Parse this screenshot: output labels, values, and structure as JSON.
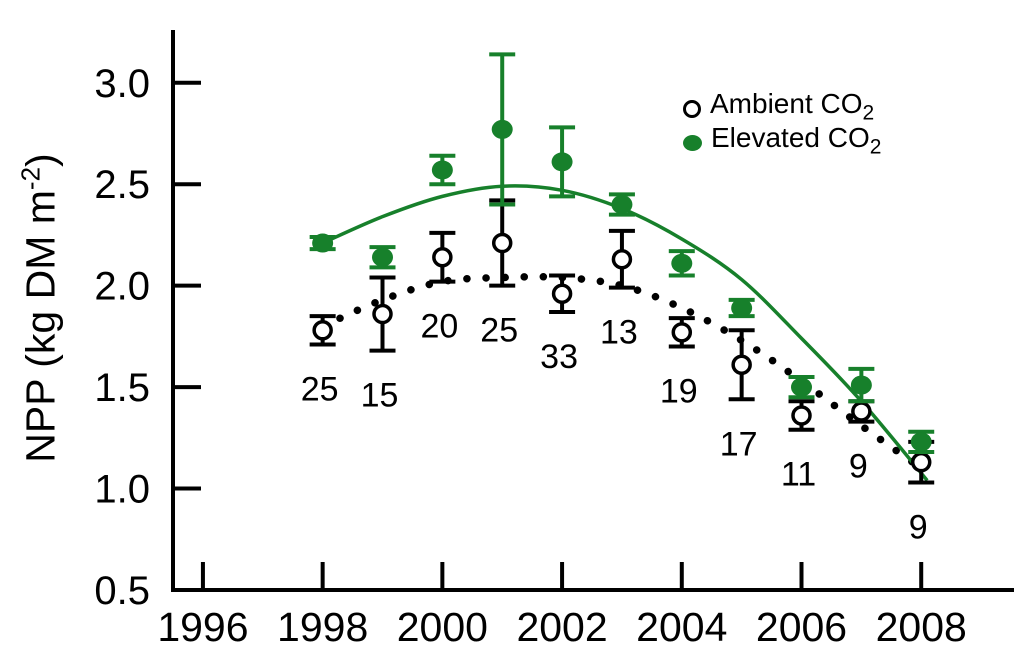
{
  "chart_data": {
    "type": "scatter",
    "title": "",
    "grid": false,
    "xlim": [
      1995.5,
      2009.55
    ],
    "ylim": [
      0.5,
      3.26
    ],
    "x_axis": {
      "ticks": [
        1996,
        1998,
        2000,
        2002,
        2004,
        2006,
        2008
      ]
    },
    "y_axis": {
      "ticks": [
        0.5,
        1.0,
        1.5,
        2.0,
        2.5,
        3.0
      ],
      "label_prefix": "NPP (kg DM m",
      "label_sup": "-2",
      "label_suffix": ")"
    },
    "colors": {
      "ambient": "#000000",
      "elevated": "#17802b"
    },
    "legend": {
      "position": "upper-right-inside",
      "items": [
        {
          "id": "ambient",
          "marker": "open-circle",
          "color": "#000000",
          "label": "Ambient CO",
          "sub": "2"
        },
        {
          "id": "elevated",
          "marker": "filled-circle",
          "color": "#17802b",
          "label": "Elevated CO",
          "sub": "2"
        }
      ]
    },
    "series": [
      {
        "name": "Ambient CO2",
        "marker": "open-circle",
        "color": "#000000",
        "x": [
          1998,
          1999,
          2000,
          2001,
          2002,
          2003,
          2004,
          2005,
          2006,
          2007,
          2008
        ],
        "y": [
          1.78,
          1.86,
          2.14,
          2.21,
          1.96,
          2.13,
          1.77,
          1.61,
          1.36,
          1.38,
          1.13
        ],
        "err": [
          0.07,
          0.18,
          0.12,
          0.21,
          0.09,
          0.14,
          0.07,
          0.17,
          0.07,
          0.05,
          0.1
        ],
        "point_labels": [
          "25",
          "15",
          "20",
          "25",
          "33",
          "13",
          "19",
          "17",
          "11",
          "9",
          "9"
        ]
      },
      {
        "name": "Elevated CO2",
        "marker": "filled-circle",
        "color": "#17802b",
        "x": [
          1998,
          1999,
          2000,
          2001,
          2002,
          2003,
          2004,
          2005,
          2006,
          2007,
          2008
        ],
        "y": [
          2.21,
          2.14,
          2.57,
          2.77,
          2.61,
          2.4,
          2.11,
          1.89,
          1.5,
          1.51,
          1.23
        ],
        "err": [
          0.03,
          0.05,
          0.07,
          0.37,
          0.17,
          0.05,
          0.06,
          0.04,
          0.05,
          0.08,
          0.05
        ],
        "point_labels": []
      }
    ],
    "trends": [
      {
        "series": "Ambient CO2",
        "style": "dotted",
        "color": "#000000",
        "points": [
          [
            1998,
            1.8
          ],
          [
            1999,
            1.93
          ],
          [
            2000,
            2.02
          ],
          [
            2001,
            2.04
          ],
          [
            2002,
            2.04
          ],
          [
            2003,
            2.0
          ],
          [
            2004,
            1.89
          ],
          [
            2005,
            1.73
          ],
          [
            2006,
            1.53
          ],
          [
            2007,
            1.31
          ],
          [
            2008,
            1.1
          ]
        ]
      },
      {
        "series": "Elevated CO2",
        "style": "solid",
        "color": "#17802b",
        "points": [
          [
            1998,
            2.21
          ],
          [
            1999,
            2.34
          ],
          [
            2000,
            2.44
          ],
          [
            2001,
            2.49
          ],
          [
            2002,
            2.47
          ],
          [
            2003,
            2.38
          ],
          [
            2004,
            2.23
          ],
          [
            2005,
            2.03
          ],
          [
            2006,
            1.74
          ],
          [
            2007,
            1.43
          ],
          [
            2008.1,
            1.04
          ]
        ]
      }
    ]
  }
}
